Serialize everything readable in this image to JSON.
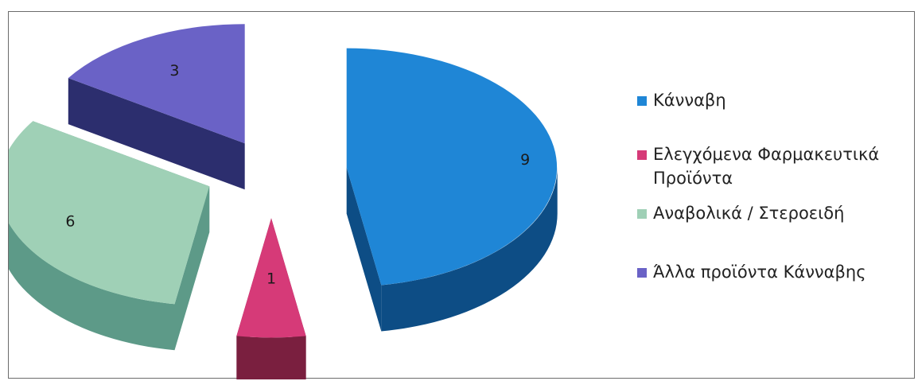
{
  "chart_data": {
    "type": "pie",
    "style": "exploded-3d",
    "categories": [
      "Κάνναβη",
      "Ελεγχόμενα Φαρμακευτικά Προϊόντα",
      "Αναβολικά / Στεροειδή",
      "Άλλα προϊόντα Κάνναβης"
    ],
    "values": [
      9,
      1,
      6,
      3
    ],
    "data_labels": [
      "9",
      "1",
      "6",
      "3"
    ],
    "colors": [
      "#1f86d6",
      "#d63a78",
      "#9fd0b6",
      "#6a62c6"
    ],
    "side_colors": [
      "#0d4d85",
      "#7a1f3f",
      "#5d9a88",
      "#2c2e6e"
    ],
    "legend_position": "right"
  }
}
